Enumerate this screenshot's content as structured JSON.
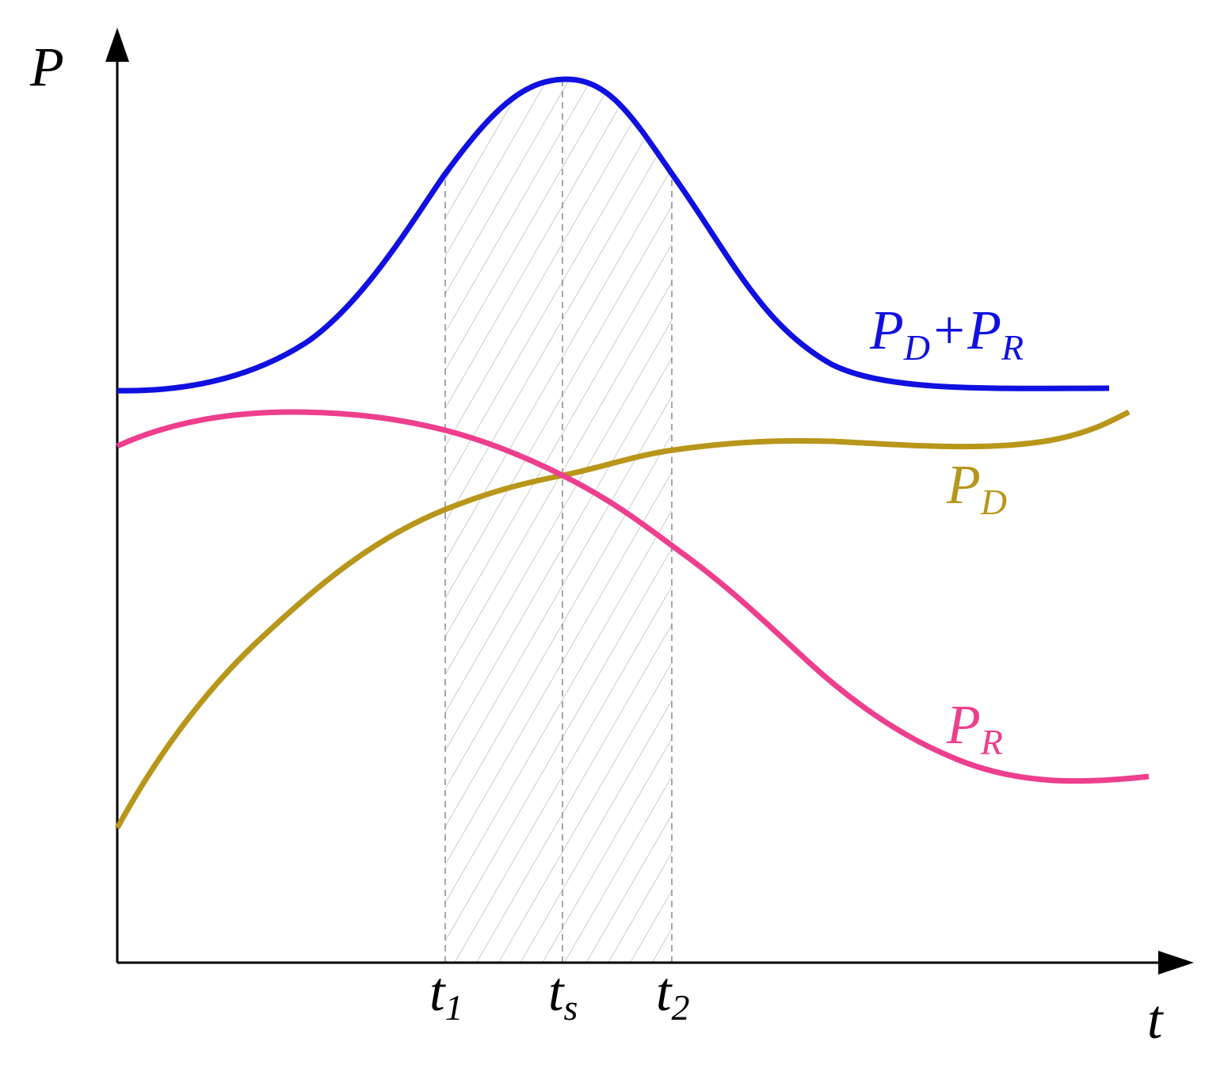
{
  "axes": {
    "y": "P",
    "x": "t"
  },
  "markers": [
    {
      "t": "t",
      "sub": "1"
    },
    {
      "t": "t",
      "sub": "s"
    },
    {
      "t": "t",
      "sub": "2"
    }
  ],
  "curves": [
    {
      "label": [
        {
          "t": "P",
          "sub": "D"
        },
        {
          "t": "+P",
          "sub": "R"
        }
      ]
    },
    {
      "label": [
        {
          "t": "P",
          "sub": "D"
        }
      ]
    },
    {
      "label": [
        {
          "t": "P",
          "sub": "R"
        }
      ]
    }
  ]
}
